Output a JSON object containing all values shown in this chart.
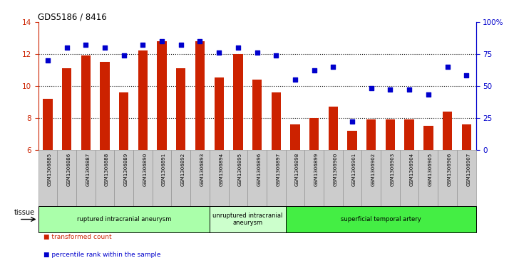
{
  "title": "GDS5186 / 8416",
  "samples": [
    "GSM1306885",
    "GSM1306886",
    "GSM1306887",
    "GSM1306888",
    "GSM1306889",
    "GSM1306890",
    "GSM1306891",
    "GSM1306892",
    "GSM1306893",
    "GSM1306894",
    "GSM1306895",
    "GSM1306896",
    "GSM1306897",
    "GSM1306898",
    "GSM1306899",
    "GSM1306900",
    "GSM1306901",
    "GSM1306902",
    "GSM1306903",
    "GSM1306904",
    "GSM1306905",
    "GSM1306906",
    "GSM1306907"
  ],
  "bar_values": [
    9.2,
    11.1,
    11.9,
    11.5,
    9.6,
    12.2,
    12.8,
    11.1,
    12.8,
    10.5,
    12.0,
    10.4,
    9.6,
    7.6,
    8.0,
    8.7,
    7.2,
    7.9,
    7.9,
    7.9,
    7.5,
    8.4,
    7.6
  ],
  "dot_values": [
    70,
    80,
    82,
    80,
    74,
    82,
    85,
    82,
    85,
    76,
    80,
    76,
    74,
    55,
    62,
    65,
    22,
    48,
    47,
    47,
    43,
    65,
    58
  ],
  "bar_color": "#cc2200",
  "dot_color": "#0000cc",
  "ylim_left": [
    6,
    14
  ],
  "ylim_right": [
    0,
    100
  ],
  "yticks_left": [
    6,
    8,
    10,
    12,
    14
  ],
  "yticks_right": [
    0,
    25,
    50,
    75,
    100
  ],
  "ytick_labels_right": [
    "0",
    "25",
    "50",
    "75",
    "100%"
  ],
  "groups": [
    {
      "label": "ruptured intracranial aneurysm",
      "start": 0,
      "end": 9,
      "color": "#aaffaa"
    },
    {
      "label": "unruptured intracranial\naneurysm",
      "start": 9,
      "end": 13,
      "color": "#ccffcc"
    },
    {
      "label": "superficial temporal artery",
      "start": 13,
      "end": 23,
      "color": "#44ee44"
    }
  ],
  "tissue_label": "tissue",
  "legend_bar_label": "transformed count",
  "legend_dot_label": "percentile rank within the sample",
  "dotted_lines": [
    8,
    10,
    12
  ],
  "bar_bottom": 6,
  "xtick_bg": "#cccccc"
}
